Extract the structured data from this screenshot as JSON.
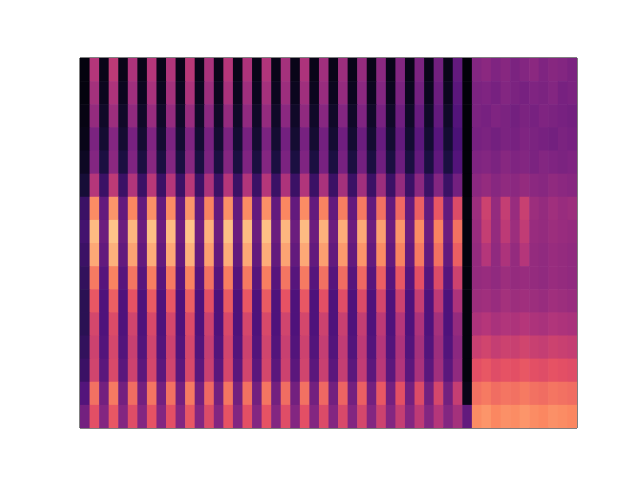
{
  "chart_data": {
    "type": "heatmap",
    "tick_labels": false,
    "zlim": [
      0,
      100
    ],
    "cells": [
      [
        2,
        50,
        4,
        52,
        4,
        48,
        4,
        50,
        4,
        49,
        4,
        51,
        4,
        47,
        4,
        50,
        4,
        48,
        4,
        49,
        4,
        46,
        4,
        48,
        4,
        45,
        4,
        44,
        4,
        42,
        4,
        40,
        4,
        38,
        4,
        36,
        4,
        34,
        4,
        30,
        1,
        38,
        40,
        37,
        39,
        36,
        38,
        40,
        37,
        39,
        38,
        36
      ],
      [
        2,
        46,
        5,
        48,
        5,
        45,
        5,
        47,
        5,
        46,
        5,
        48,
        5,
        44,
        5,
        47,
        5,
        45,
        5,
        46,
        5,
        44,
        5,
        45,
        5,
        43,
        5,
        42,
        5,
        40,
        5,
        38,
        5,
        36,
        5,
        34,
        5,
        32,
        5,
        28,
        1,
        36,
        37,
        35,
        38,
        36,
        35,
        37,
        36,
        38,
        35,
        36
      ],
      [
        3,
        42,
        7,
        44,
        7,
        41,
        7,
        43,
        7,
        42,
        7,
        43,
        7,
        40,
        7,
        42,
        7,
        41,
        7,
        42,
        7,
        40,
        7,
        41,
        7,
        39,
        7,
        38,
        7,
        37,
        7,
        35,
        7,
        33,
        7,
        31,
        7,
        30,
        7,
        26,
        1,
        36,
        35,
        37,
        36,
        34,
        36,
        35,
        37,
        36,
        35,
        34
      ],
      [
        4,
        36,
        9,
        38,
        9,
        35,
        9,
        37,
        9,
        36,
        9,
        37,
        9,
        35,
        9,
        36,
        9,
        35,
        9,
        36,
        9,
        34,
        9,
        35,
        9,
        34,
        9,
        33,
        9,
        32,
        9,
        31,
        9,
        30,
        9,
        28,
        9,
        27,
        9,
        24,
        1,
        35,
        36,
        34,
        36,
        35,
        37,
        36,
        35,
        34,
        36,
        35
      ],
      [
        6,
        38,
        12,
        40,
        12,
        37,
        12,
        39,
        12,
        38,
        12,
        39,
        12,
        36,
        12,
        38,
        12,
        37,
        12,
        38,
        12,
        36,
        12,
        37,
        12,
        35,
        12,
        35,
        12,
        34,
        12,
        33,
        12,
        32,
        12,
        30,
        12,
        29,
        12,
        26,
        1,
        37,
        38,
        36,
        39,
        37,
        38,
        36,
        38,
        37,
        36,
        37
      ],
      [
        10,
        50,
        20,
        52,
        20,
        49,
        20,
        51,
        20,
        50,
        20,
        51,
        20,
        48,
        20,
        50,
        20,
        49,
        20,
        50,
        20,
        48,
        20,
        49,
        20,
        47,
        20,
        46,
        20,
        45,
        20,
        44,
        20,
        42,
        20,
        40,
        20,
        38,
        20,
        34,
        1,
        40,
        42,
        39,
        41,
        40,
        42,
        40,
        39,
        41,
        40,
        39
      ],
      [
        20,
        76,
        30,
        78,
        30,
        75,
        30,
        77,
        30,
        76,
        30,
        78,
        30,
        74,
        30,
        77,
        30,
        76,
        30,
        77,
        30,
        75,
        30,
        76,
        30,
        74,
        30,
        73,
        30,
        72,
        30,
        70,
        30,
        68,
        30,
        66,
        30,
        64,
        30,
        60,
        2,
        44,
        56,
        42,
        54,
        43,
        55,
        44,
        42,
        45,
        43,
        44
      ],
      [
        22,
        86,
        32,
        88,
        32,
        85,
        32,
        87,
        32,
        86,
        32,
        88,
        32,
        84,
        32,
        87,
        32,
        86,
        32,
        87,
        32,
        85,
        32,
        86,
        32,
        84,
        32,
        83,
        32,
        82,
        32,
        80,
        32,
        78,
        32,
        76,
        32,
        74,
        32,
        70,
        2,
        43,
        54,
        42,
        52,
        44,
        53,
        43,
        42,
        44,
        43,
        42
      ],
      [
        20,
        82,
        30,
        84,
        30,
        81,
        30,
        83,
        30,
        82,
        30,
        84,
        30,
        80,
        30,
        83,
        30,
        82,
        30,
        83,
        30,
        81,
        30,
        82,
        30,
        80,
        30,
        79,
        30,
        78,
        30,
        76,
        30,
        74,
        30,
        72,
        30,
        70,
        30,
        66,
        2,
        42,
        50,
        41,
        48,
        42,
        50,
        42,
        41,
        43,
        42,
        41
      ],
      [
        18,
        72,
        27,
        74,
        27,
        71,
        27,
        73,
        27,
        72,
        27,
        74,
        27,
        70,
        27,
        73,
        27,
        72,
        27,
        73,
        27,
        71,
        27,
        72,
        27,
        70,
        27,
        69,
        27,
        68,
        27,
        66,
        27,
        64,
        27,
        62,
        27,
        60,
        27,
        56,
        2,
        42,
        43,
        41,
        44,
        42,
        43,
        42,
        41,
        43,
        42,
        41
      ],
      [
        16,
        64,
        25,
        66,
        25,
        63,
        25,
        65,
        25,
        64,
        25,
        66,
        25,
        62,
        25,
        65,
        25,
        64,
        25,
        65,
        25,
        63,
        25,
        64,
        25,
        62,
        25,
        61,
        25,
        60,
        25,
        58,
        25,
        56,
        25,
        54,
        25,
        52,
        25,
        48,
        2,
        44,
        45,
        43,
        46,
        44,
        45,
        44,
        43,
        45,
        44,
        43
      ],
      [
        16,
        58,
        25,
        60,
        25,
        57,
        25,
        59,
        25,
        58,
        25,
        60,
        25,
        56,
        25,
        59,
        25,
        58,
        25,
        59,
        25,
        57,
        25,
        58,
        25,
        56,
        25,
        55,
        25,
        54,
        25,
        52,
        25,
        50,
        25,
        48,
        25,
        46,
        25,
        42,
        2,
        48,
        50,
        47,
        49,
        48,
        50,
        48,
        47,
        49,
        48,
        47
      ],
      [
        18,
        56,
        26,
        58,
        26,
        55,
        26,
        57,
        26,
        56,
        26,
        58,
        26,
        54,
        26,
        57,
        26,
        56,
        26,
        57,
        26,
        55,
        26,
        56,
        26,
        54,
        26,
        53,
        26,
        52,
        26,
        50,
        26,
        48,
        26,
        46,
        26,
        44,
        26,
        40,
        2,
        55,
        57,
        54,
        56,
        55,
        57,
        55,
        54,
        56,
        55,
        54
      ],
      [
        20,
        57,
        28,
        59,
        28,
        56,
        28,
        58,
        28,
        57,
        28,
        59,
        28,
        55,
        28,
        58,
        28,
        57,
        28,
        58,
        28,
        56,
        28,
        57,
        28,
        55,
        28,
        54,
        28,
        53,
        28,
        51,
        28,
        49,
        28,
        47,
        28,
        45,
        28,
        41,
        2,
        62,
        64,
        61,
        63,
        62,
        64,
        62,
        61,
        63,
        62,
        61
      ],
      [
        26,
        70,
        34,
        72,
        34,
        69,
        34,
        71,
        34,
        70,
        34,
        72,
        34,
        68,
        34,
        71,
        34,
        70,
        34,
        71,
        34,
        69,
        34,
        70,
        34,
        68,
        34,
        67,
        34,
        66,
        34,
        64,
        34,
        62,
        34,
        60,
        34,
        58,
        34,
        54,
        4,
        70,
        72,
        69,
        71,
        70,
        72,
        70,
        69,
        71,
        70,
        69
      ],
      [
        34,
        62,
        38,
        64,
        38,
        61,
        38,
        63,
        38,
        62,
        38,
        64,
        38,
        60,
        38,
        63,
        38,
        62,
        38,
        63,
        38,
        61,
        38,
        62,
        38,
        60,
        38,
        59,
        38,
        58,
        38,
        56,
        38,
        54,
        38,
        52,
        38,
        50,
        38,
        46,
        30,
        76,
        78,
        75,
        77,
        76,
        78,
        76,
        75,
        77,
        76,
        75
      ]
    ]
  }
}
